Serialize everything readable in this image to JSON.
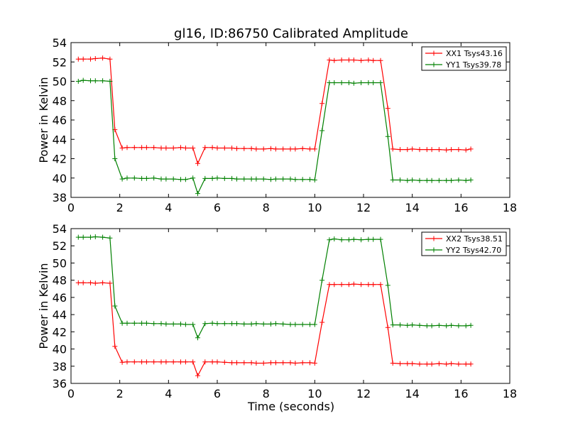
{
  "figure": {
    "title": "gl16, ID:86750 Calibrated Amplitude",
    "xlabel": "Time (seconds)"
  },
  "chart_data": [
    {
      "type": "line",
      "title": "gl16, ID:86750 Calibrated Amplitude",
      "xlabel": "",
      "ylabel": "Power in Kelvin",
      "xlim": [
        0,
        18
      ],
      "ylim": [
        38,
        54
      ],
      "xticks": [
        "0",
        "2",
        "4",
        "6",
        "8",
        "10",
        "12",
        "14",
        "16",
        "18"
      ],
      "yticks": [
        "38",
        "40",
        "42",
        "44",
        "46",
        "48",
        "50",
        "52",
        "54"
      ],
      "grid": false,
      "legend_position": "top-right",
      "x": [
        0.3,
        0.5,
        0.8,
        1.0,
        1.3,
        1.6,
        1.8,
        2.1,
        2.3,
        2.6,
        2.9,
        3.1,
        3.4,
        3.7,
        3.9,
        4.2,
        4.5,
        4.7,
        5.0,
        5.2,
        5.5,
        5.8,
        6.0,
        6.3,
        6.6,
        6.8,
        7.1,
        7.4,
        7.6,
        7.9,
        8.2,
        8.4,
        8.7,
        9.0,
        9.2,
        9.5,
        9.8,
        10.0,
        10.3,
        10.6,
        10.8,
        11.1,
        11.4,
        11.6,
        11.9,
        12.2,
        12.4,
        12.7,
        13.0,
        13.2,
        13.5,
        13.8,
        14.0,
        14.3,
        14.6,
        14.8,
        15.1,
        15.4,
        15.6,
        15.9,
        16.2,
        16.4
      ],
      "series": [
        {
          "name": "XX1 Tsys43.16",
          "color": "#ff0000",
          "values": [
            52.3,
            52.3,
            52.3,
            52.35,
            52.4,
            52.3,
            45.0,
            43.1,
            43.15,
            43.15,
            43.15,
            43.15,
            43.15,
            43.1,
            43.1,
            43.1,
            43.15,
            43.1,
            43.1,
            41.5,
            43.15,
            43.15,
            43.1,
            43.1,
            43.1,
            43.05,
            43.05,
            43.05,
            43.0,
            43.0,
            43.05,
            43.0,
            43.0,
            43.0,
            43.0,
            43.05,
            43.0,
            43.0,
            47.7,
            52.2,
            52.15,
            52.2,
            52.2,
            52.2,
            52.15,
            52.2,
            52.15,
            52.15,
            47.2,
            43.0,
            42.95,
            42.95,
            43.0,
            42.95,
            42.95,
            42.95,
            42.95,
            42.9,
            42.95,
            42.95,
            42.9,
            43.0
          ]
        },
        {
          "name": "YY1 Tsys39.78",
          "color": "#008000",
          "values": [
            50.0,
            50.1,
            50.05,
            50.05,
            50.05,
            50.0,
            42.0,
            39.9,
            40.0,
            40.0,
            39.95,
            39.95,
            40.0,
            39.9,
            39.9,
            39.9,
            39.85,
            39.85,
            40.0,
            38.4,
            39.95,
            39.95,
            40.0,
            39.95,
            39.95,
            39.9,
            39.9,
            39.9,
            39.9,
            39.9,
            39.85,
            39.9,
            39.9,
            39.9,
            39.85,
            39.85,
            39.85,
            39.8,
            44.9,
            49.85,
            49.85,
            49.85,
            49.85,
            49.8,
            49.85,
            49.85,
            49.85,
            49.85,
            44.3,
            39.8,
            39.8,
            39.75,
            39.8,
            39.75,
            39.75,
            39.75,
            39.75,
            39.75,
            39.75,
            39.8,
            39.75,
            39.8
          ]
        }
      ]
    },
    {
      "type": "line",
      "title": "",
      "xlabel": "Time (seconds)",
      "ylabel": "Power in Kelvin",
      "xlim": [
        0,
        18
      ],
      "ylim": [
        36,
        54
      ],
      "xticks": [
        "0",
        "2",
        "4",
        "6",
        "8",
        "10",
        "12",
        "14",
        "16",
        "18"
      ],
      "yticks": [
        "36",
        "38",
        "40",
        "42",
        "44",
        "46",
        "48",
        "50",
        "52",
        "54"
      ],
      "grid": false,
      "legend_position": "top-right",
      "x": [
        0.3,
        0.5,
        0.8,
        1.0,
        1.3,
        1.6,
        1.8,
        2.1,
        2.3,
        2.6,
        2.9,
        3.1,
        3.4,
        3.7,
        3.9,
        4.2,
        4.5,
        4.7,
        5.0,
        5.2,
        5.5,
        5.8,
        6.0,
        6.3,
        6.6,
        6.8,
        7.1,
        7.4,
        7.6,
        7.9,
        8.2,
        8.4,
        8.7,
        9.0,
        9.2,
        9.5,
        9.8,
        10.0,
        10.3,
        10.6,
        10.8,
        11.1,
        11.4,
        11.6,
        11.9,
        12.2,
        12.4,
        12.7,
        13.0,
        13.2,
        13.5,
        13.8,
        14.0,
        14.3,
        14.6,
        14.8,
        15.1,
        15.4,
        15.6,
        15.9,
        16.2,
        16.4
      ],
      "series": [
        {
          "name": "XX2 Tsys38.51",
          "color": "#ff0000",
          "values": [
            47.7,
            47.7,
            47.7,
            47.65,
            47.7,
            47.65,
            40.3,
            38.45,
            38.5,
            38.5,
            38.5,
            38.5,
            38.5,
            38.5,
            38.5,
            38.5,
            38.5,
            38.5,
            38.5,
            36.9,
            38.5,
            38.5,
            38.5,
            38.45,
            38.4,
            38.4,
            38.4,
            38.4,
            38.35,
            38.35,
            38.4,
            38.4,
            38.4,
            38.4,
            38.35,
            38.4,
            38.4,
            38.35,
            43.1,
            47.5,
            47.5,
            47.5,
            47.5,
            47.55,
            47.5,
            47.5,
            47.5,
            47.5,
            42.5,
            38.35,
            38.3,
            38.3,
            38.3,
            38.25,
            38.25,
            38.25,
            38.3,
            38.25,
            38.3,
            38.25,
            38.25,
            38.25
          ]
        },
        {
          "name": "YY2 Tsys42.70",
          "color": "#008000",
          "values": [
            53.0,
            53.0,
            53.0,
            53.05,
            53.0,
            52.9,
            45.0,
            43.0,
            43.0,
            43.0,
            43.0,
            43.0,
            42.95,
            42.95,
            42.9,
            42.9,
            42.9,
            42.85,
            42.85,
            41.3,
            42.95,
            43.0,
            42.95,
            42.95,
            42.95,
            42.95,
            42.9,
            42.9,
            42.95,
            42.9,
            42.9,
            42.95,
            42.9,
            42.85,
            42.85,
            42.85,
            42.85,
            42.85,
            48.0,
            52.7,
            52.8,
            52.7,
            52.7,
            52.75,
            52.7,
            52.75,
            52.75,
            52.75,
            47.4,
            42.8,
            42.8,
            42.75,
            42.8,
            42.75,
            42.7,
            42.7,
            42.75,
            42.7,
            42.75,
            42.7,
            42.7,
            42.75
          ]
        }
      ]
    }
  ]
}
